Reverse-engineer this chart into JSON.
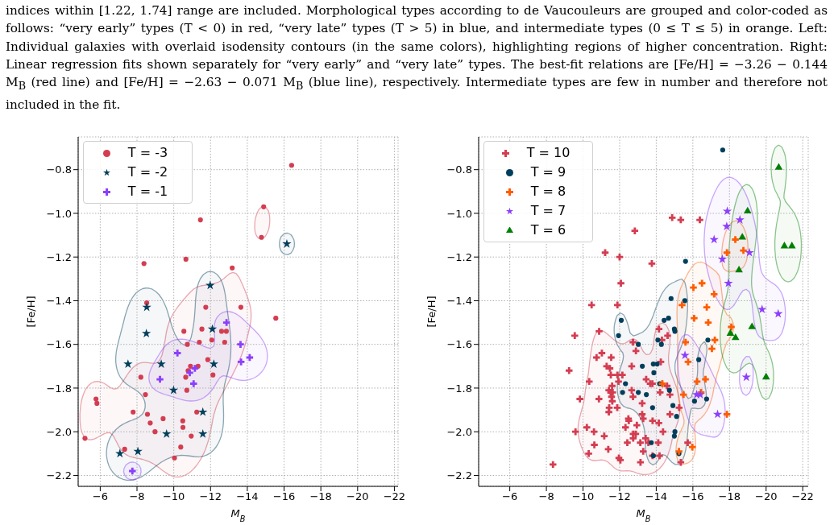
{
  "chart_data": [
    {
      "type": "scatter",
      "xlabel": "M$_{B}$",
      "ylabel": "[Fe/H]",
      "legend": "top left",
      "grid": true,
      "annotations": [
        "indices within [1.22, 1.74] range are included. Morphological types according to de Vaucouleurs are grouped and color-coded as follows: “very early” types (T < 0) in red, “very late” types (T > 5) in blue, and intermediate types (0 ≤ T ≤ 5) in orange. Left: Individual galaxies with overlaid isodensity contours (in the same colors), highlighting regions of higher concentration. Right: Linear regression fits shown separately for “very early” and “very late” types. The best-fit relations are [Fe/H] = −3.26 − 0.144 M$_{B}$ (red line) and [Fe/H] = −2.63 − 0.071 M$_{B}$ (blue line), respectively. Intermediate types are few in number and therefore not included in the fit."
      ],
      "xlim": [
        -4.8,
        -22.2
      ],
      "ylim": [
        -2.25,
        -0.65
      ],
      "xticks": [
        {
          "value": -6,
          "label": "−6"
        },
        {
          "value": -8,
          "label": "−8"
        },
        {
          "value": -10,
          "label": "−10"
        },
        {
          "value": -12,
          "label": "−12"
        },
        {
          "value": -14,
          "label": "−14"
        },
        {
          "value": -16,
          "label": "−16"
        },
        {
          "value": -18,
          "label": "−18"
        },
        {
          "value": -20,
          "label": "−20"
        },
        {
          "value": -22,
          "label": "−22"
        }
      ],
      "yticks": [
        {
          "value": -0.8,
          "label": "−0.8"
        },
        {
          "value": -1.0,
          "label": "−1.0"
        },
        {
          "value": -1.2,
          "label": "−1.2"
        },
        {
          "value": -1.4,
          "label": "−1.4"
        },
        {
          "value": -1.6,
          "label": "−1.6"
        },
        {
          "value": -1.8,
          "label": "−1.8"
        },
        {
          "value": -2.0,
          "label": "−2.0"
        },
        {
          "value": -2.2,
          "label": "−2.2"
        }
      ],
      "series": [
        {
          "name": "T = -3",
          "color": "#d43d51",
          "marker": "circle",
          "x": [
            -16.41,
            -14.89,
            -11.45,
            -14.77,
            -8.38,
            -10.66,
            -13.18,
            -8.53,
            -11.74,
            -13.65,
            -15.55,
            -10.55,
            -11.53,
            -12.6,
            -12.86,
            -10.74,
            -12.07,
            -12.77,
            -11.39,
            -11.85,
            -10.91,
            -11.32,
            -10.78,
            -12.13,
            -8.21,
            -10.65,
            -8.46,
            -10.71,
            -5.77,
            -5.82,
            -7.79,
            -8.57,
            -11.25,
            -9.42,
            -8.72,
            -10.49,
            -10.5,
            -8.98,
            -10.95,
            -5.17,
            -10.38,
            -7.33,
            -10.04
          ],
          "values": [
            -0.78,
            -0.97,
            -1.03,
            -1.11,
            -1.23,
            -1.21,
            -1.25,
            -1.41,
            -1.43,
            -1.43,
            -1.48,
            -1.54,
            -1.53,
            -1.54,
            -1.54,
            -1.6,
            -1.58,
            -1.59,
            -1.59,
            -1.67,
            -1.7,
            -1.7,
            -1.72,
            -1.74,
            -1.75,
            -1.75,
            -1.83,
            -1.81,
            -1.85,
            -1.87,
            -1.91,
            -1.92,
            -1.91,
            -1.94,
            -1.96,
            -1.95,
            -1.98,
            -2.0,
            -2.02,
            -2.03,
            -2.07,
            -2.08,
            -2.12
          ]
        },
        {
          "name": "T = -2",
          "color": "#003f5c",
          "marker": "star",
          "x": [
            -16.15,
            -11.98,
            -8.53,
            -8.51,
            -12.1,
            -7.51,
            -9.32,
            -12.18,
            -9.99,
            -11.58,
            -9.61,
            -11.58,
            -7.07,
            -8.05
          ],
          "values": [
            -1.14,
            -1.33,
            -1.43,
            -1.55,
            -1.53,
            -1.69,
            -1.69,
            -1.69,
            -1.81,
            -1.91,
            -2.01,
            -2.01,
            -2.1,
            -2.09
          ]
        },
        {
          "name": "T = -1",
          "color": "#8c3ffb",
          "marker": "cross",
          "x": [
            -12.87,
            -10.2,
            -13.63,
            -14.13,
            -13.66,
            -11.15,
            -10.87,
            -9.25,
            -11.08,
            -7.75
          ],
          "values": [
            -1.5,
            -1.64,
            -1.6,
            -1.66,
            -1.68,
            -1.71,
            -1.73,
            -1.76,
            -1.78,
            -2.18
          ]
        }
      ]
    },
    {
      "type": "scatter",
      "xlabel": "M$_{B}$",
      "ylabel": "[Fe/H]",
      "legend": "top left",
      "grid": true,
      "xlim": [
        -4.3,
        -22.3
      ],
      "ylim": [
        -2.25,
        -0.65
      ],
      "xticks": [
        {
          "value": -6,
          "label": "−6"
        },
        {
          "value": -8,
          "label": "−8"
        },
        {
          "value": -10,
          "label": "−10"
        },
        {
          "value": -12,
          "label": "−12"
        },
        {
          "value": -14,
          "label": "−14"
        },
        {
          "value": -16,
          "label": "−16"
        },
        {
          "value": -18,
          "label": "−18"
        },
        {
          "value": -20,
          "label": "−20"
        },
        {
          "value": -22,
          "label": "−22"
        }
      ],
      "yticks": [
        {
          "value": -0.8,
          "label": "−0.8"
        },
        {
          "value": -1.0,
          "label": "−1.0"
        },
        {
          "value": -1.2,
          "label": "−1.2"
        },
        {
          "value": -1.4,
          "label": "−1.4"
        },
        {
          "value": -1.6,
          "label": "−1.6"
        },
        {
          "value": -1.8,
          "label": "−1.8"
        },
        {
          "value": -2.0,
          "label": "−2.0"
        },
        {
          "value": -2.2,
          "label": "−2.2"
        }
      ],
      "series": [
        {
          "name": "T = 10",
          "color": "#d43d51",
          "marker": "cross",
          "x": [
            -14.87,
            -15.34,
            -16.38,
            -12.83,
            -11.21,
            -12.0,
            -13.76,
            -12.07,
            -10.47,
            -11.88,
            -9.55,
            -10.88,
            -14.15,
            -14.62,
            -14.31,
            -12.73,
            -12.89,
            -10.74,
            -11.03,
            -11.54,
            -11.29,
            -12.66,
            -9.24,
            -11.47,
            -14.25,
            -11.52,
            -11.88,
            -12.15,
            -10.34,
            -11.59,
            -11.94,
            -13.45,
            -13.67,
            -13.79,
            -11.41,
            -11.51,
            -11.62,
            -12.66,
            -14.21,
            -14.59,
            -9.83,
            -10.87,
            -11.56,
            -12.73,
            -13.23,
            -14.75,
            -11.6,
            -11.43,
            -11.87,
            -11.41,
            -12.48,
            -13.23,
            -13.29,
            -12.5,
            -13.8,
            -14.14,
            -15.25,
            -14.75,
            -10.21,
            -9.59,
            -10.6,
            -12.32,
            -12.94,
            -12.74,
            -12.88,
            -14.37,
            -11.16,
            -13.42,
            -13.13,
            -12.74,
            -10.62,
            -12.42,
            -14.11,
            -13.57,
            -11.38,
            -13.29,
            -10.31,
            -13.8,
            -14.18,
            -11.96,
            -12.04,
            -13.14,
            -15.72,
            -15.34,
            -8.36
          ],
          "values": [
            -1.02,
            -1.03,
            -1.03,
            -1.08,
            -1.18,
            -1.2,
            -1.23,
            -1.32,
            -1.42,
            -1.42,
            -1.56,
            -1.54,
            -1.53,
            -1.56,
            -1.58,
            -1.59,
            -1.63,
            -1.66,
            -1.64,
            -1.66,
            -1.7,
            -1.7,
            -1.72,
            -1.71,
            -1.68,
            -1.74,
            -1.74,
            -1.74,
            -1.77,
            -1.79,
            -1.77,
            -1.76,
            -1.78,
            -1.78,
            -1.81,
            -1.82,
            -1.82,
            -1.81,
            -1.82,
            -1.79,
            -1.85,
            -1.85,
            -1.84,
            -1.84,
            -1.87,
            -1.83,
            -1.86,
            -1.89,
            -1.89,
            -1.91,
            -1.94,
            -1.92,
            -1.94,
            -1.95,
            -1.95,
            -1.96,
            -1.89,
            -1.92,
            -1.98,
            -2.0,
            -2.0,
            -1.98,
            -1.97,
            -2.01,
            -2.01,
            -2.0,
            -2.02,
            -2.03,
            -2.05,
            -2.03,
            -2.06,
            -2.05,
            -2.05,
            -2.05,
            -2.08,
            -2.09,
            -2.1,
            -2.11,
            -2.11,
            -2.12,
            -2.13,
            -2.14,
            -2.05,
            -2.14,
            -2.15
          ]
        },
        {
          "name": "T = 9",
          "color": "#003f5c",
          "marker": "circle",
          "x": [
            -17.63,
            -15.6,
            -14.81,
            -15.56,
            -12.09,
            -14.67,
            -14.43,
            -11.94,
            -14.99,
            -15.02,
            -14.09,
            -14.28,
            -13.02,
            -16.82,
            -16.32,
            -13.24,
            -13.84,
            -14.05,
            -13.87,
            -12.32,
            -14.18,
            -14.72,
            -12.16,
            -13.02,
            -13.46,
            -16.75,
            -16.09,
            -13.8,
            -14.91,
            -15.11,
            -15.02,
            -14.99,
            -13.73,
            -13.84,
            -15.24
          ],
          "values": [
            -0.71,
            -1.22,
            -1.39,
            -1.4,
            -1.49,
            -1.48,
            -1.49,
            -1.56,
            -1.53,
            -1.54,
            -1.58,
            -1.6,
            -1.6,
            -1.58,
            -1.67,
            -1.7,
            -1.69,
            -1.69,
            -1.73,
            -1.78,
            -1.78,
            -1.81,
            -1.82,
            -1.82,
            -1.83,
            -1.85,
            -1.86,
            -1.89,
            -1.88,
            -1.93,
            -2.0,
            -2.02,
            -2.05,
            -2.11,
            -2.1
          ]
        },
        {
          "name": "T = 8",
          "color": "#ff5c00",
          "marker": "cross",
          "x": [
            -18.32,
            -17.86,
            -18.76,
            -16.5,
            -16.03,
            -17.16,
            -15.41,
            -16.76,
            -16.07,
            -16.84,
            -18.1,
            -15.6,
            -17.2,
            -17.04,
            -15.74,
            -16.69,
            -16.23,
            -14.33,
            -15.49,
            -16.45,
            -17.86,
            -15.97,
            -15.24
          ],
          "values": [
            -1.12,
            -1.18,
            -1.17,
            -1.32,
            -1.34,
            -1.37,
            -1.42,
            -1.43,
            -1.48,
            -1.5,
            -1.52,
            -1.59,
            -1.58,
            -1.62,
            -1.68,
            -1.76,
            -1.77,
            -1.78,
            -1.83,
            -1.82,
            -1.92,
            -2.07,
            -2.09
          ]
        },
        {
          "name": "T = 7",
          "color": "#8c3ffb",
          "marker": "star",
          "x": [
            -17.88,
            -18.57,
            -17.85,
            -17.16,
            -19.09,
            -17.61,
            -17.94,
            -19.78,
            -20.66,
            -15.57,
            -18.92,
            -16.21,
            -16.4,
            -17.35
          ],
          "values": [
            -0.99,
            -1.03,
            -1.06,
            -1.12,
            -1.18,
            -1.21,
            -1.32,
            -1.44,
            -1.46,
            -1.65,
            -1.75,
            -1.83,
            -1.83,
            -1.92
          ]
        },
        {
          "name": "T = 6",
          "color": "#008000",
          "marker": "triangle",
          "x": [
            -20.69,
            -18.99,
            -18.7,
            -21.0,
            -21.41,
            -18.52,
            -19.23,
            -18.05,
            -18.33,
            -20.0
          ],
          "values": [
            -0.79,
            -0.99,
            -1.11,
            -1.15,
            -1.15,
            -1.26,
            -1.52,
            -1.55,
            -1.57,
            -1.75
          ]
        }
      ]
    }
  ]
}
